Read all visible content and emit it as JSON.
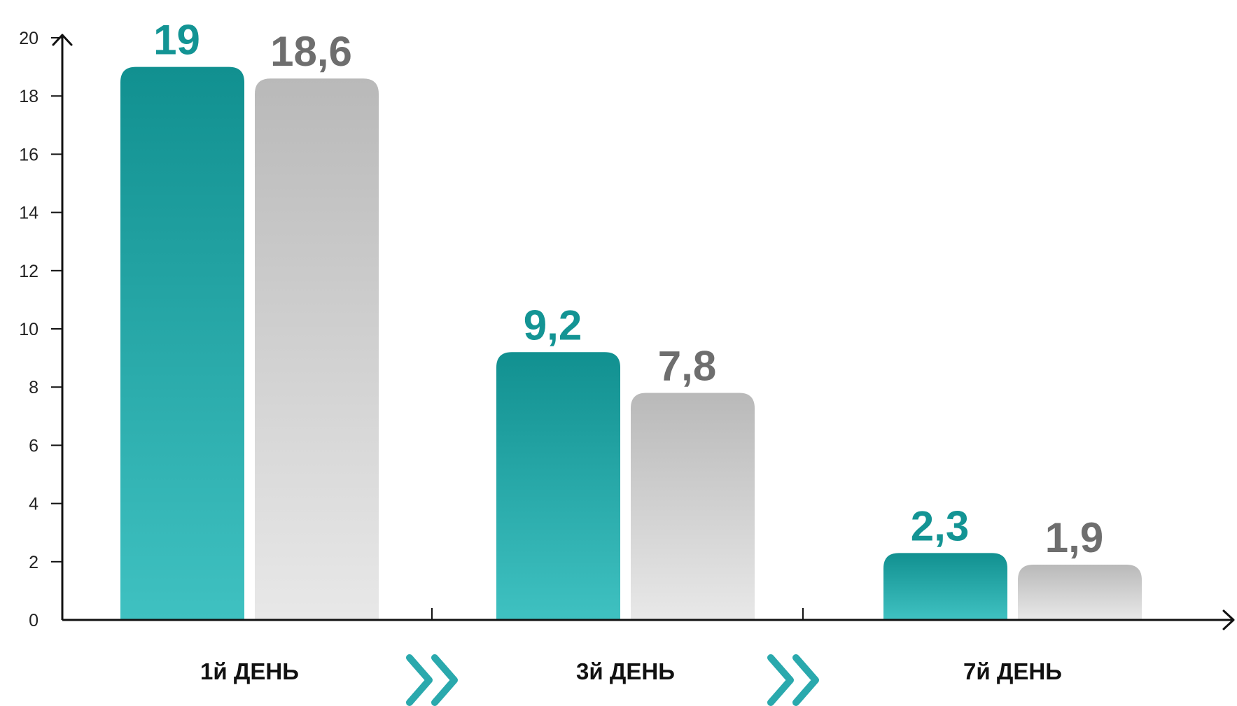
{
  "chart_data": {
    "type": "bar",
    "categories": [
      "1й ДЕНЬ",
      "3й ДЕНЬ",
      "7й ДЕНЬ"
    ],
    "series": [
      {
        "values": [
          19,
          9.2,
          2.3
        ],
        "labels": [
          "19",
          "9,2",
          "2,3"
        ],
        "color": "#139494"
      },
      {
        "values": [
          18.6,
          7.8,
          1.9
        ],
        "labels": [
          "18,6",
          "7,8",
          "1,9"
        ],
        "color": "#6e6e6e"
      }
    ],
    "yticks": [
      0,
      2,
      4,
      6,
      8,
      10,
      12,
      14,
      16,
      18,
      20
    ],
    "ylim": [
      0,
      20
    ],
    "grid": false,
    "legend": false,
    "separator_icon": "double-chevron-right-icon",
    "colors": {
      "teal_top": "#119090",
      "teal_bottom": "#3fc1c1",
      "gray_top": "#b9b9b9",
      "gray_bottom": "#e8e8e8",
      "chevron": "#2aa9ad",
      "axis": "#111111"
    }
  }
}
